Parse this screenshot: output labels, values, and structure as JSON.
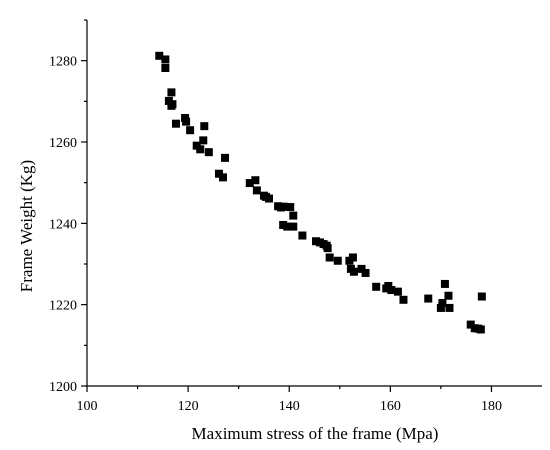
{
  "chart_data": {
    "type": "scatter",
    "title": "",
    "xlabel": "Maximum stress of the frame (Mpa)",
    "ylabel": "Frame Weight (Kg)",
    "xlim": [
      100,
      190
    ],
    "ylim": [
      1200,
      1290
    ],
    "xticks": [
      100,
      120,
      140,
      160,
      180
    ],
    "yticks": [
      1200,
      1220,
      1240,
      1260,
      1280
    ],
    "grid": false,
    "legend": "none",
    "marker": "square",
    "color": "#000000",
    "points": [
      [
        114.3,
        1281.2
      ],
      [
        115.5,
        1280.3
      ],
      [
        115.5,
        1278.2
      ],
      [
        116.7,
        1272.2
      ],
      [
        116.2,
        1270.1
      ],
      [
        116.9,
        1269.3
      ],
      [
        116.7,
        1268.9
      ],
      [
        119.4,
        1265.9
      ],
      [
        119.6,
        1265.0
      ],
      [
        117.6,
        1264.5
      ],
      [
        120.4,
        1262.9
      ],
      [
        123.2,
        1263.9
      ],
      [
        123.0,
        1260.4
      ],
      [
        121.7,
        1259.1
      ],
      [
        122.4,
        1258.2
      ],
      [
        124.1,
        1257.5
      ],
      [
        127.3,
        1256.1
      ],
      [
        126.1,
        1252.2
      ],
      [
        126.9,
        1251.3
      ],
      [
        132.2,
        1249.9
      ],
      [
        133.3,
        1250.6
      ],
      [
        133.6,
        1248.1
      ],
      [
        135.0,
        1246.8
      ],
      [
        135.4,
        1246.5
      ],
      [
        136.0,
        1246.1
      ],
      [
        137.8,
        1244.2
      ],
      [
        138.4,
        1243.9
      ],
      [
        138.9,
        1244.1
      ],
      [
        140.2,
        1244.0
      ],
      [
        140.8,
        1241.9
      ],
      [
        138.8,
        1239.6
      ],
      [
        139.6,
        1239.2
      ],
      [
        140.8,
        1239.2
      ],
      [
        142.6,
        1237.0
      ],
      [
        145.3,
        1235.6
      ],
      [
        146.1,
        1235.3
      ],
      [
        146.8,
        1234.9
      ],
      [
        147.4,
        1234.5
      ],
      [
        147.6,
        1233.9
      ],
      [
        148.0,
        1231.6
      ],
      [
        149.6,
        1230.8
      ],
      [
        151.9,
        1230.8
      ],
      [
        152.6,
        1231.6
      ],
      [
        152.2,
        1228.8
      ],
      [
        152.8,
        1228.1
      ],
      [
        154.3,
        1228.8
      ],
      [
        155.1,
        1227.8
      ],
      [
        157.2,
        1224.4
      ],
      [
        159.2,
        1224.0
      ],
      [
        160.2,
        1223.6
      ],
      [
        159.6,
        1224.6
      ],
      [
        161.5,
        1223.2
      ],
      [
        162.6,
        1221.2
      ],
      [
        167.5,
        1221.5
      ],
      [
        170.8,
        1225.1
      ],
      [
        171.5,
        1222.2
      ],
      [
        170.3,
        1220.4
      ],
      [
        170.0,
        1219.2
      ],
      [
        171.7,
        1219.2
      ],
      [
        175.9,
        1215.1
      ],
      [
        176.7,
        1214.2
      ],
      [
        177.4,
        1214.1
      ],
      [
        177.9,
        1213.9
      ],
      [
        178.1,
        1222.0
      ]
    ]
  }
}
